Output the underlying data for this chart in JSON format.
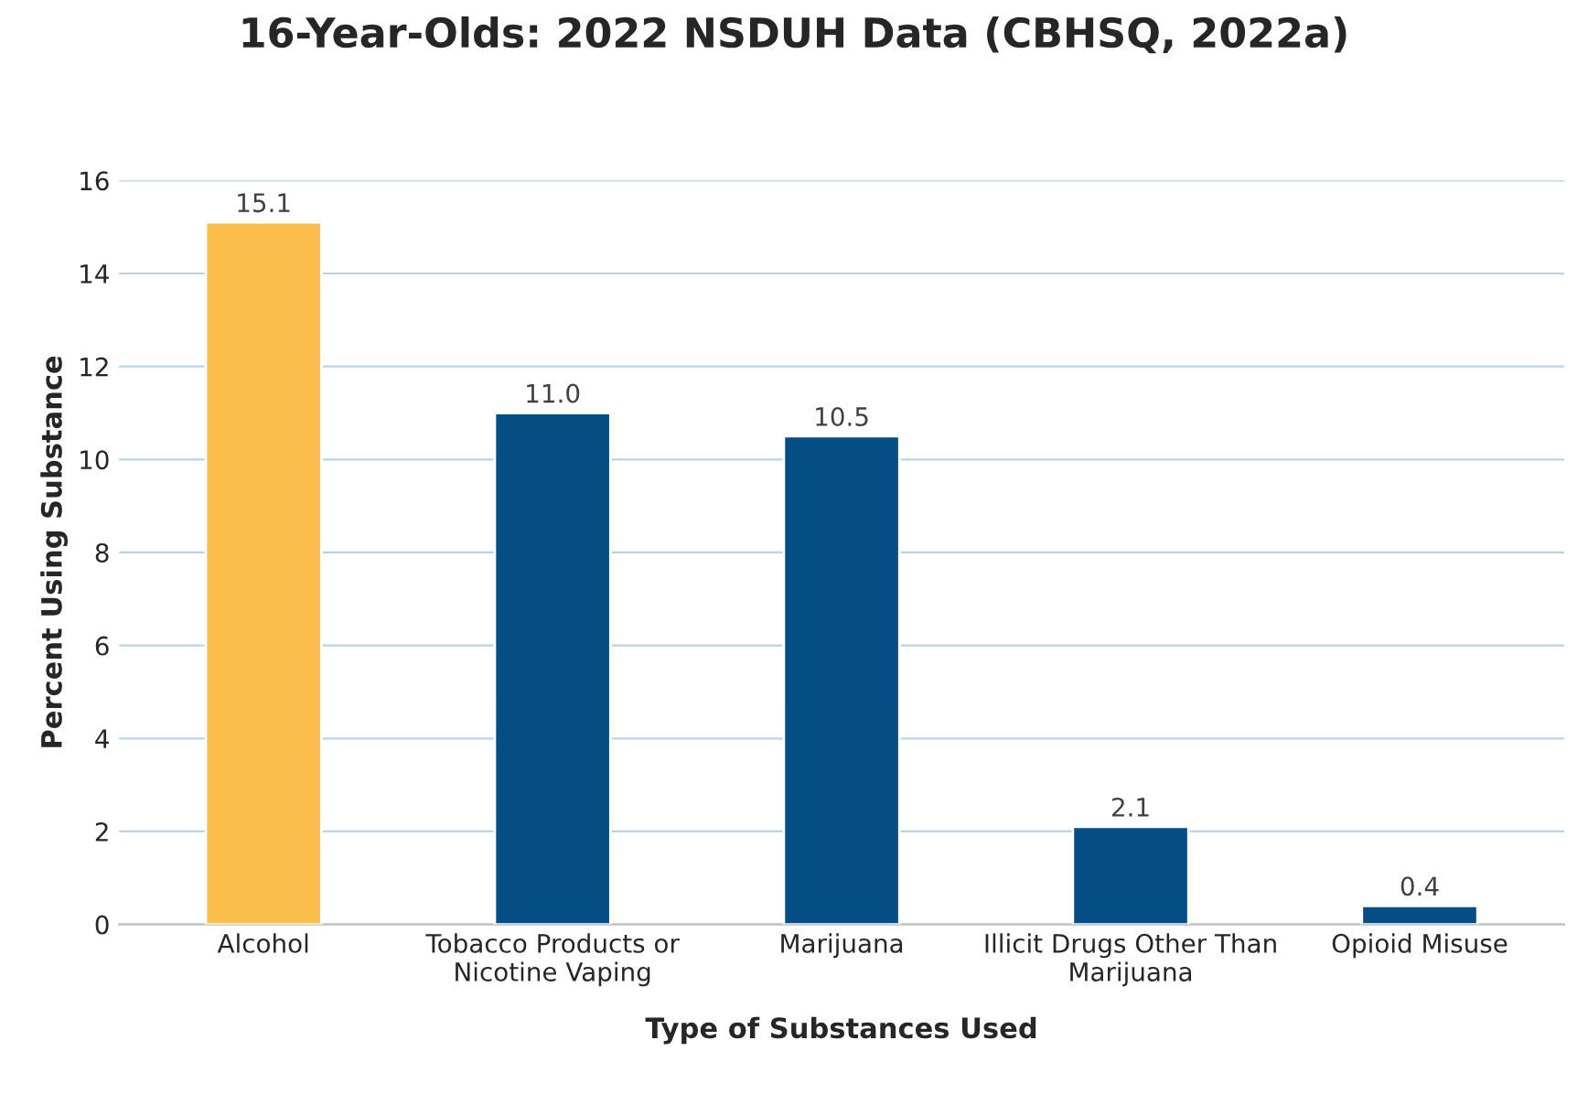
{
  "chart_data": {
    "type": "bar",
    "title": "16-Year-Olds: 2022 NSDUH Data (CBHSQ, 2022a)",
    "xlabel": "Type of Substances Used",
    "ylabel": "Percent Using Substance",
    "categories": [
      "Alcohol",
      "Tobacco Products or\nNicotine Vaping",
      "Marijuana",
      "Illicit Drugs Other Than\nMarijuana",
      "Opioid Misuse"
    ],
    "values": [
      15.1,
      11.0,
      10.5,
      2.1,
      0.4
    ],
    "value_labels": [
      "15.1",
      "11.0",
      "10.5",
      "2.1",
      "0.4"
    ],
    "colors": [
      "#fbbe4b",
      "#044d85",
      "#044d85",
      "#044d85",
      "#044d85"
    ],
    "ylim": [
      0,
      16
    ],
    "yticks": [
      0,
      2,
      4,
      6,
      8,
      10,
      12,
      14,
      16
    ],
    "grid": "y",
    "legend": false
  }
}
